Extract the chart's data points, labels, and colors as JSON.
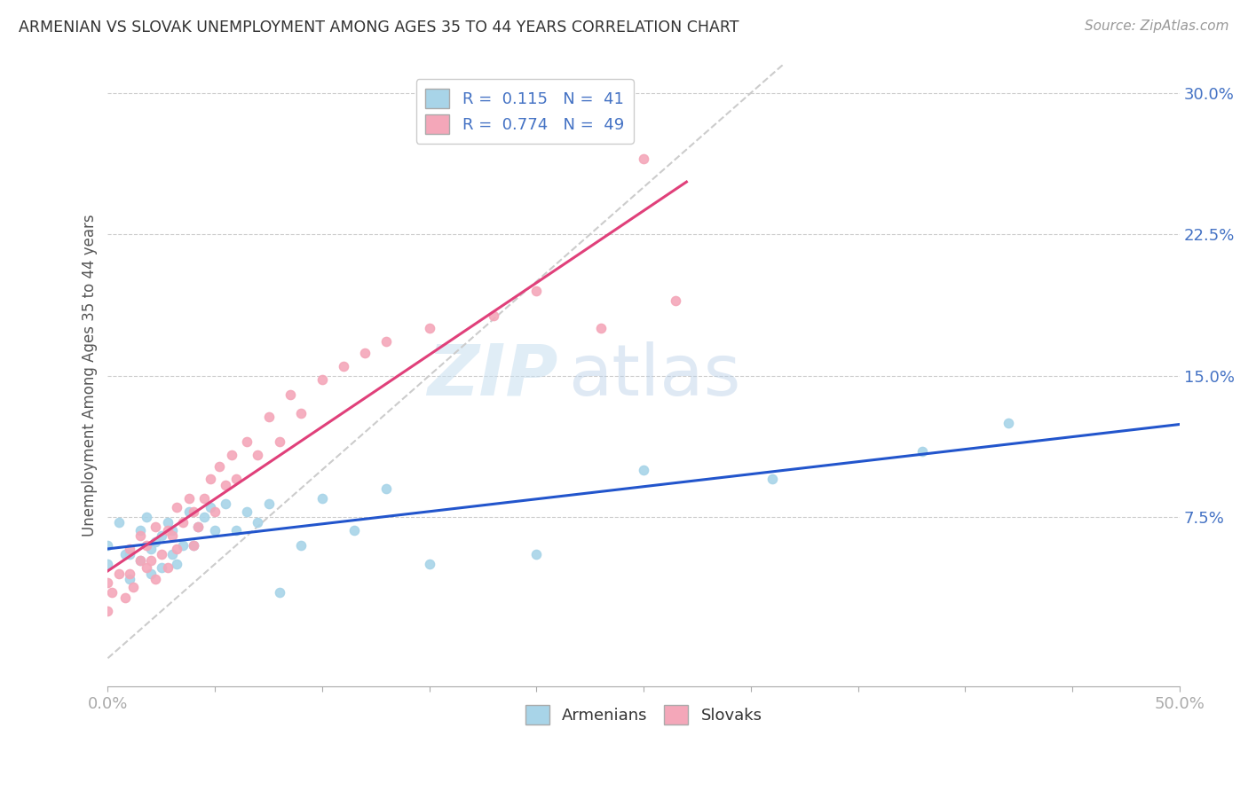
{
  "title": "ARMENIAN VS SLOVAK UNEMPLOYMENT AMONG AGES 35 TO 44 YEARS CORRELATION CHART",
  "source": "Source: ZipAtlas.com",
  "ylabel": "Unemployment Among Ages 35 to 44 years",
  "xlim": [
    0.0,
    0.5
  ],
  "ylim": [
    -0.015,
    0.315
  ],
  "ytick_positions": [
    0.075,
    0.15,
    0.225,
    0.3
  ],
  "ytick_labels": [
    "7.5%",
    "15.0%",
    "22.5%",
    "30.0%"
  ],
  "armenian_color": "#a8d4e8",
  "slovak_color": "#f4a7b9",
  "armenian_line_color": "#2255cc",
  "slovak_line_color": "#e0407a",
  "diagonal_color": "#cccccc",
  "R_armenian": 0.115,
  "N_armenian": 41,
  "R_slovak": 0.774,
  "N_slovak": 49,
  "watermark_zip": "ZIP",
  "watermark_atlas": "atlas",
  "armenian_scatter_x": [
    0.0,
    0.0,
    0.005,
    0.008,
    0.01,
    0.01,
    0.015,
    0.015,
    0.018,
    0.02,
    0.02,
    0.022,
    0.025,
    0.025,
    0.028,
    0.03,
    0.03,
    0.032,
    0.035,
    0.038,
    0.04,
    0.042,
    0.045,
    0.048,
    0.05,
    0.055,
    0.06,
    0.065,
    0.07,
    0.075,
    0.08,
    0.09,
    0.1,
    0.115,
    0.13,
    0.15,
    0.2,
    0.25,
    0.31,
    0.38,
    0.42
  ],
  "armenian_scatter_y": [
    0.06,
    0.05,
    0.072,
    0.055,
    0.055,
    0.042,
    0.068,
    0.052,
    0.075,
    0.058,
    0.045,
    0.062,
    0.048,
    0.065,
    0.072,
    0.055,
    0.068,
    0.05,
    0.06,
    0.078,
    0.06,
    0.07,
    0.075,
    0.08,
    0.068,
    0.082,
    0.068,
    0.078,
    0.072,
    0.082,
    0.035,
    0.06,
    0.085,
    0.068,
    0.09,
    0.05,
    0.055,
    0.1,
    0.095,
    0.11,
    0.125
  ],
  "slovak_scatter_x": [
    0.0,
    0.0,
    0.002,
    0.005,
    0.008,
    0.01,
    0.01,
    0.012,
    0.015,
    0.015,
    0.018,
    0.018,
    0.02,
    0.022,
    0.022,
    0.025,
    0.028,
    0.028,
    0.03,
    0.032,
    0.032,
    0.035,
    0.038,
    0.04,
    0.04,
    0.042,
    0.045,
    0.048,
    0.05,
    0.052,
    0.055,
    0.058,
    0.06,
    0.065,
    0.07,
    0.075,
    0.08,
    0.085,
    0.09,
    0.1,
    0.11,
    0.12,
    0.13,
    0.15,
    0.18,
    0.2,
    0.23,
    0.25,
    0.265
  ],
  "slovak_scatter_y": [
    0.025,
    0.04,
    0.035,
    0.045,
    0.032,
    0.045,
    0.058,
    0.038,
    0.052,
    0.065,
    0.048,
    0.06,
    0.052,
    0.042,
    0.07,
    0.055,
    0.068,
    0.048,
    0.065,
    0.058,
    0.08,
    0.072,
    0.085,
    0.06,
    0.078,
    0.07,
    0.085,
    0.095,
    0.078,
    0.102,
    0.092,
    0.108,
    0.095,
    0.115,
    0.108,
    0.128,
    0.115,
    0.14,
    0.13,
    0.148,
    0.155,
    0.162,
    0.168,
    0.175,
    0.182,
    0.195,
    0.175,
    0.265,
    0.19
  ]
}
